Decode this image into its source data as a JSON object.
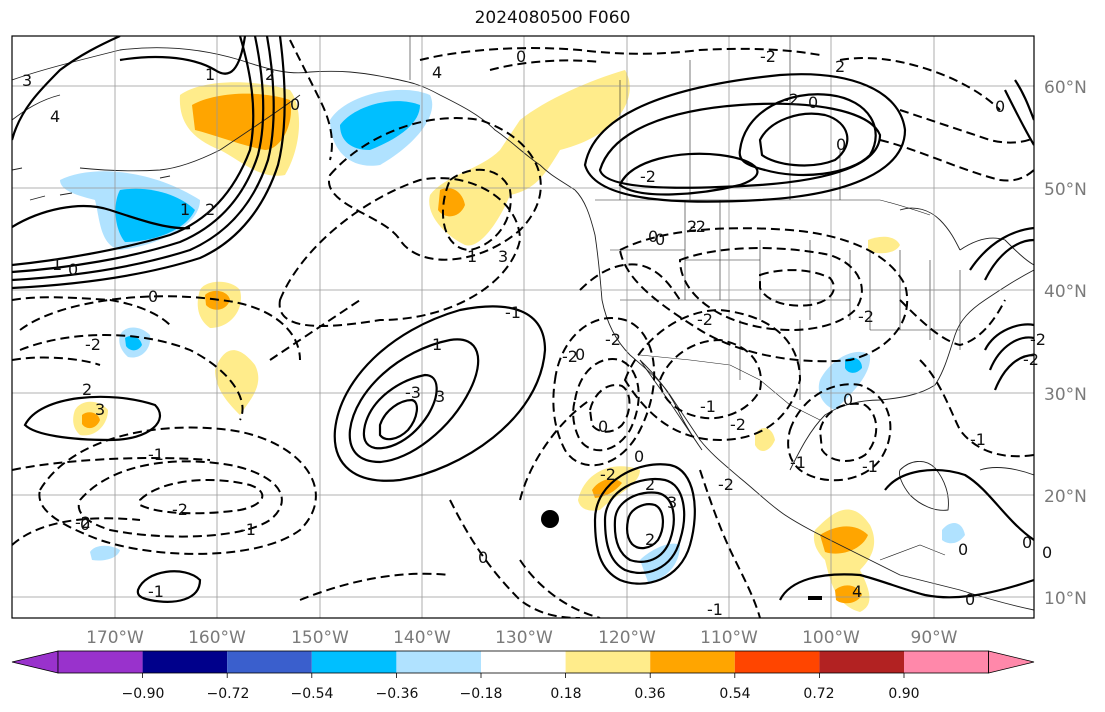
{
  "title": "2024080500 F060",
  "map": {
    "lon_labels": [
      "170°W",
      "160°W",
      "150°W",
      "140°W",
      "130°W",
      "120°W",
      "110°W",
      "100°W",
      "90°W"
    ],
    "lat_labels": [
      "60°N",
      "50°N",
      "40°N",
      "30°N",
      "20°N",
      "10°N"
    ],
    "contour_labels": [
      "3",
      "4",
      "-2",
      "2",
      "4",
      "1",
      "2",
      "1",
      "2",
      "0",
      "1",
      "0",
      "0",
      "0",
      "-2",
      "-1",
      "-2",
      "-1",
      "2",
      "3",
      "0",
      "1",
      "3",
      "-1",
      "-2",
      "-2",
      "0",
      "-2",
      "-2",
      "0",
      "2",
      "0",
      "-1",
      "-2",
      "-1",
      "-1",
      "0",
      "2",
      "3",
      "0",
      "2",
      "-2",
      "0",
      "-1",
      "0",
      "0",
      "4",
      "3",
      "-3",
      "-2",
      "-2",
      "0",
      "-2",
      "-2",
      "-2",
      "0",
      "0",
      "0",
      "-2",
      "-1",
      "-1",
      "-2",
      "1",
      "0",
      "0"
    ],
    "marker": {
      "name": "storm-center",
      "lon": -127.2,
      "lat": 17.8
    }
  },
  "colorbar": {
    "labels": [
      "−0.90",
      "−0.72",
      "−0.54",
      "−0.36",
      "−0.18",
      "0.18",
      "0.36",
      "0.54",
      "0.72",
      "0.90"
    ],
    "colors": [
      "#9932cc",
      "#00008b",
      "#3a5fcd",
      "#00bfff",
      "#b0e2ff",
      "#ffffff",
      "#ffec8b",
      "#ffa500",
      "#ff4500",
      "#b22222",
      "#ff88aa"
    ]
  }
}
